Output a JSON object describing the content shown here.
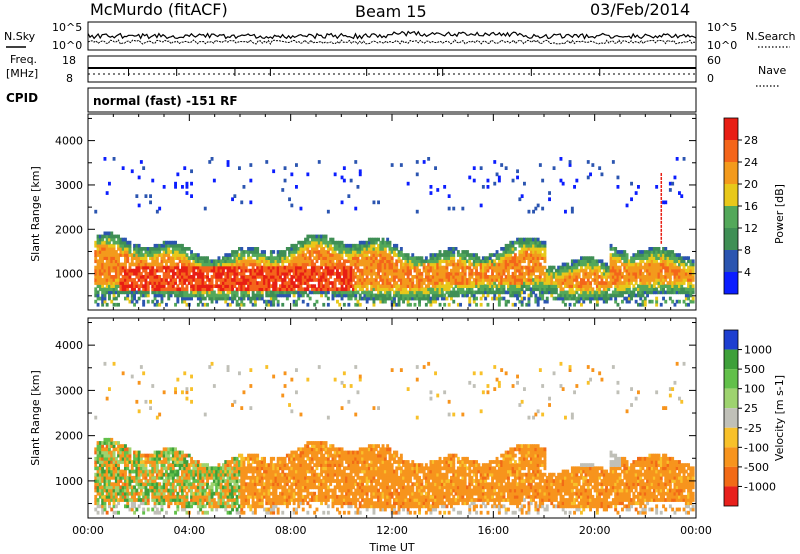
{
  "header": {
    "station": "McMurdo (fitACF)",
    "beam": "Beam 15",
    "date": "03/Feb/2014"
  },
  "top_panels": {
    "nsky_label": "N.Sky",
    "nsearch_label": "N.Search",
    "nsky_ticks": [
      "10^5",
      "10^0"
    ],
    "nsearch_ticks": [
      "10^5",
      "10^0"
    ],
    "freq_label_1": "Freq.",
    "freq_label_2": "[MHz]",
    "freq_ticks": [
      "18",
      "8"
    ],
    "nave_label": "Nave",
    "nave_ticks": [
      "60",
      "0"
    ],
    "cpid_label": "CPID",
    "cpid_text": "normal (fast) -151 RF"
  },
  "chart_data": [
    {
      "type": "heatmap",
      "name": "Power",
      "ylabel": "Slant Range [km]",
      "xlabel": "",
      "ylim": [
        180,
        4600
      ],
      "xlim": [
        0,
        24
      ],
      "y_ticks": [
        "1000",
        "2000",
        "3000",
        "4000"
      ],
      "colorbar": {
        "label": "Power [dB]",
        "ticks": [
          "4",
          "8",
          "12",
          "16",
          "20",
          "24",
          "28"
        ],
        "colors": [
          "#0b1dff",
          "#2b55b0",
          "#3f8f55",
          "#53a85a",
          "#e8c81a",
          "#f39a1c",
          "#f4651a",
          "#e81e14"
        ]
      },
      "approx_echo_regions": [
        {
          "t0": 0.2,
          "t1": 23.8,
          "r0": 400,
          "r1": 1700,
          "level": "mid"
        },
        {
          "t0": 1.0,
          "t1": 10.0,
          "r0": 550,
          "r1": 1200,
          "level": "high"
        }
      ]
    },
    {
      "type": "heatmap",
      "name": "Velocity",
      "ylabel": "Slant Range [km]",
      "xlabel": "Time UT",
      "ylim": [
        180,
        4600
      ],
      "xlim": [
        0,
        24
      ],
      "y_ticks": [
        "1000",
        "2000",
        "3000",
        "4000"
      ],
      "x_ticks": [
        "00:00",
        "04:00",
        "08:00",
        "12:00",
        "16:00",
        "20:00",
        "00:00"
      ],
      "colorbar": {
        "label": "Velocity [m s-1]",
        "ticks": [
          "1000",
          "500",
          "100",
          "25",
          "-25",
          "-100",
          "-500",
          "-1000"
        ],
        "colors": [
          "#1e3fd0",
          "#3ea03a",
          "#62c04a",
          "#9ed36f",
          "#c0c0b8",
          "#f8c12a",
          "#f7941d",
          "#f26a16",
          "#e8201c"
        ]
      }
    }
  ]
}
